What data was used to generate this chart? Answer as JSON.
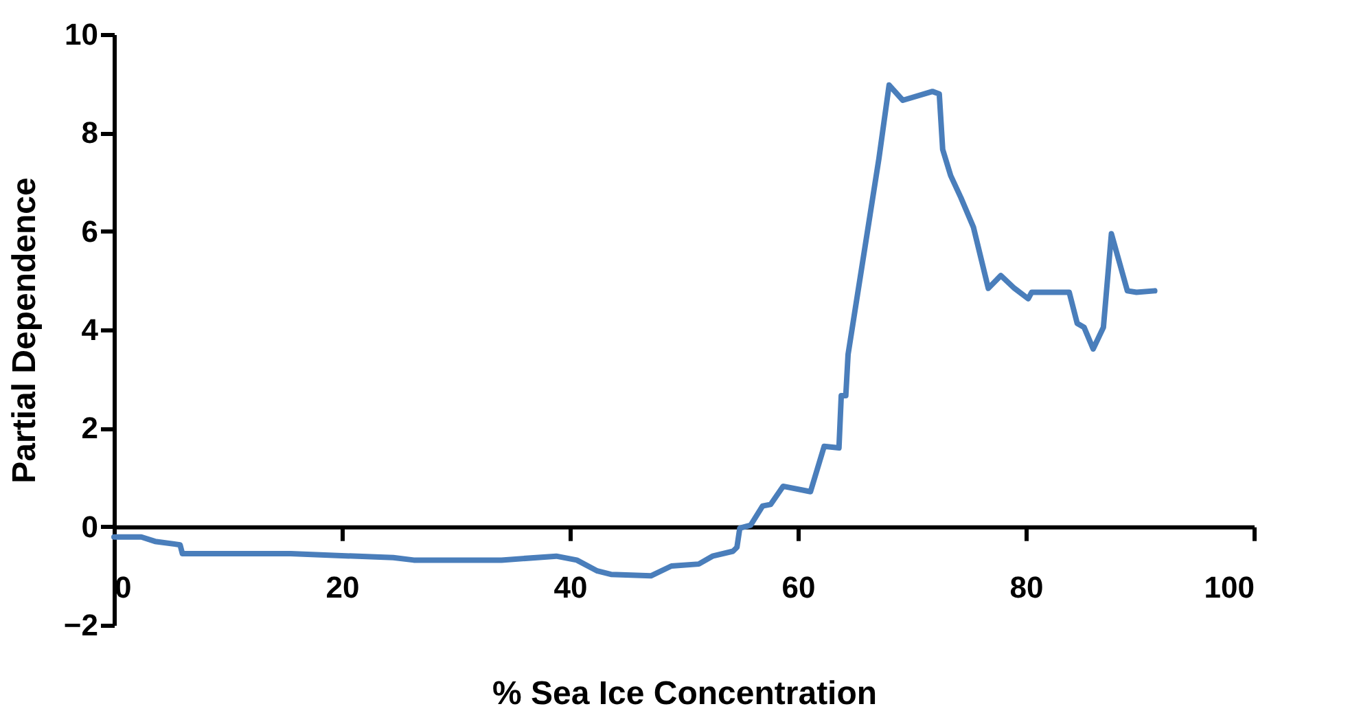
{
  "chart_data": {
    "type": "line",
    "xlabel": "% Sea Ice Concentration",
    "ylabel": "Partial Dependence",
    "x": [
      0,
      2.4,
      3.6,
      5.8,
      6,
      15.5,
      24.5,
      26.3,
      34,
      38.8,
      40.6,
      42.4,
      43.6,
      47.1,
      48.9,
      51.3,
      52.5,
      54.3,
      54.65,
      54.9,
      55.85,
      56.9,
      57.6,
      58.7,
      61.1,
      62.3,
      63.6,
      63.8,
      64.2,
      64.4,
      67.1,
      68.0,
      69.2,
      71.8,
      72.4,
      72.7,
      73.4,
      74.3,
      75.4,
      76.7,
      77.8,
      79.0,
      80.2,
      80.5,
      83.8,
      84.5,
      85.1,
      85.9,
      86.8,
      87.5,
      88.9,
      89.7,
      91.3
    ],
    "series": [
      {
        "color": "#4a7ebb",
        "values": [
          -0.21,
          -0.21,
          -0.3,
          -0.37,
          -0.55,
          -0.55,
          -0.63,
          -0.68,
          -0.68,
          -0.6,
          -0.68,
          -0.9,
          -0.97,
          -1.0,
          -0.8,
          -0.76,
          -0.6,
          -0.5,
          -0.42,
          -0.03,
          0.03,
          0.42,
          0.45,
          0.82,
          0.71,
          1.63,
          1.6,
          2.66,
          2.66,
          3.5,
          7.47,
          8.97,
          8.66,
          8.84,
          8.79,
          7.66,
          7.13,
          6.68,
          6.08,
          4.84,
          5.1,
          4.84,
          4.63,
          4.76,
          4.76,
          4.13,
          4.05,
          3.61,
          4.05,
          5.95,
          4.79,
          4.76,
          4.79
        ]
      }
    ],
    "xlim": [
      0,
      100
    ],
    "xticks": [
      0,
      20,
      40,
      60,
      80,
      100
    ],
    "ylim": [
      -2,
      10
    ],
    "yticks": [
      -2,
      0,
      2,
      4,
      6,
      8,
      10
    ],
    "grid": false,
    "marker": "none",
    "line_style": "solid"
  }
}
